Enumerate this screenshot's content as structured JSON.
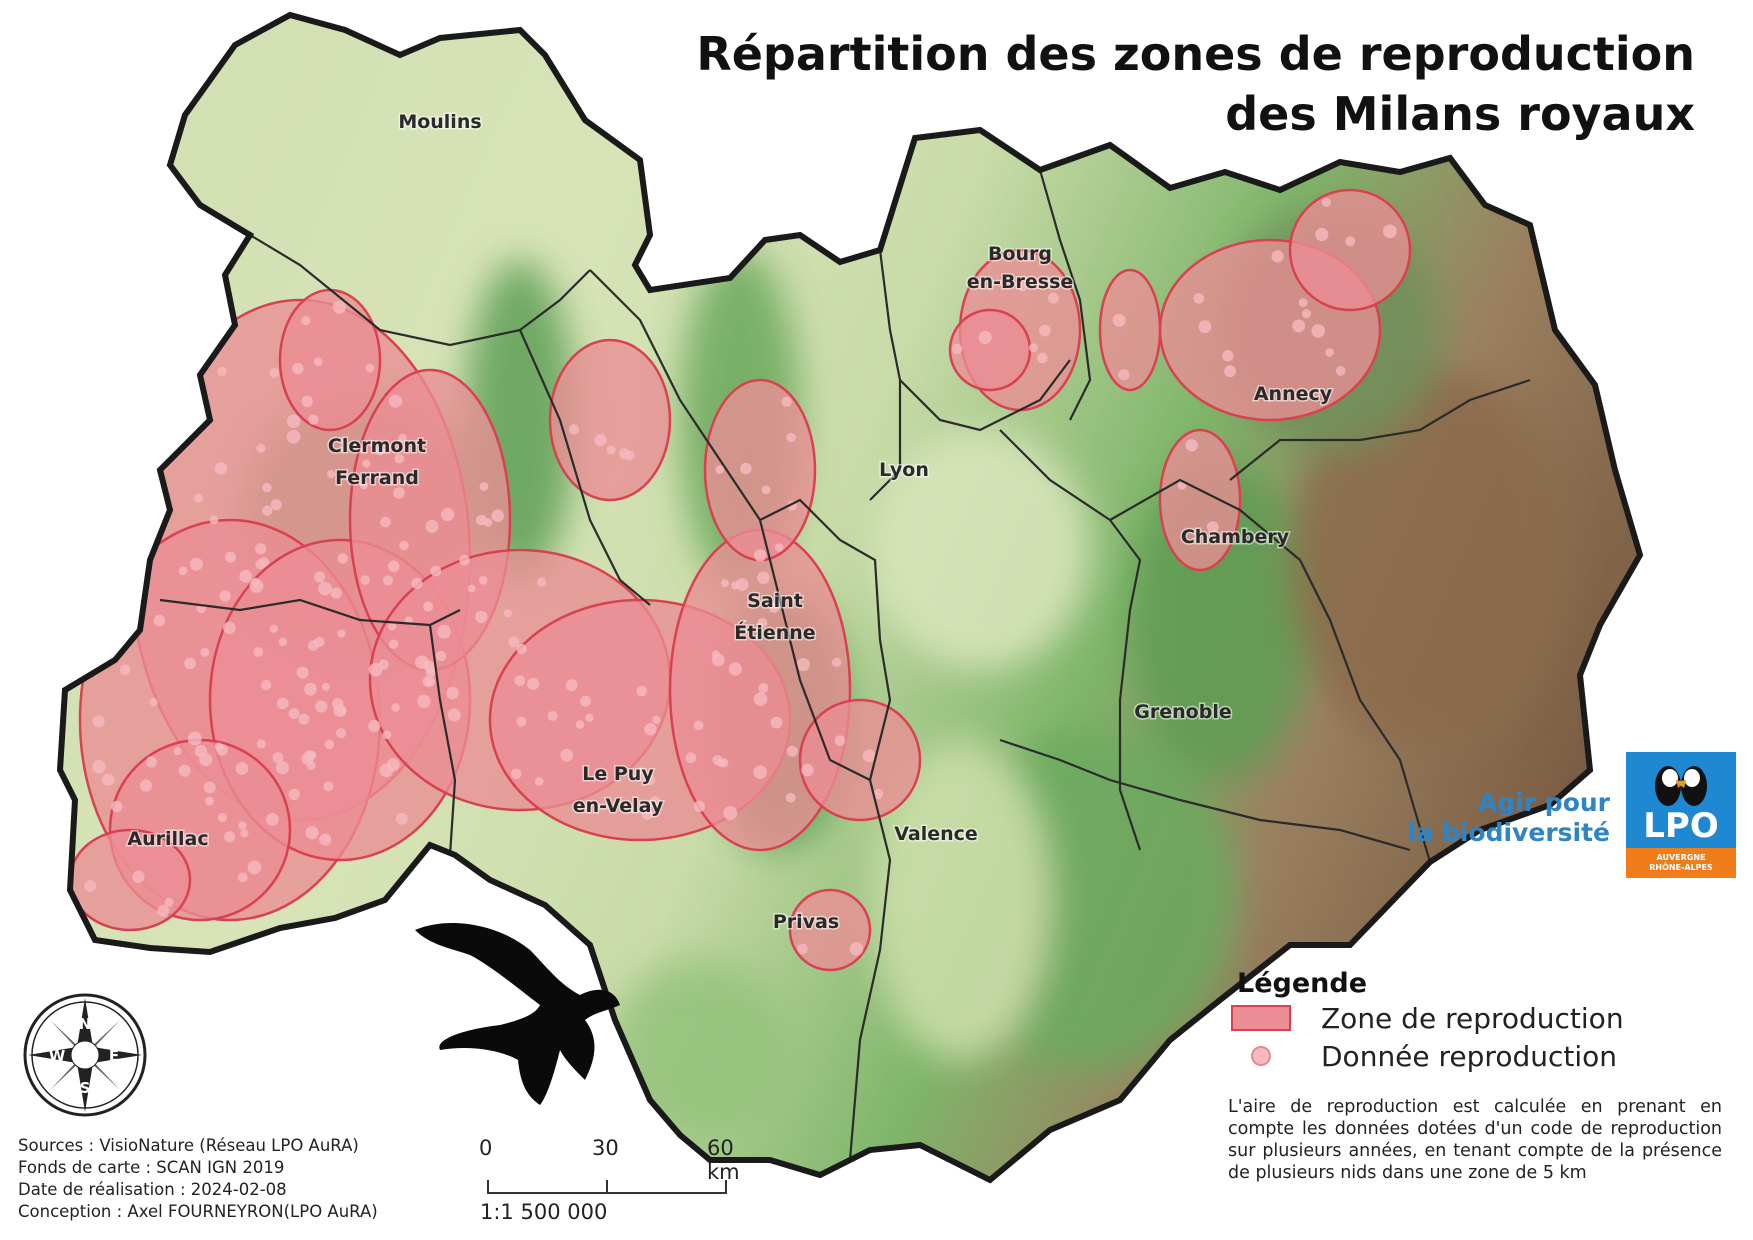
{
  "title": {
    "line1": "Répartition des zones de reproduction",
    "line2": "des Milans royaux"
  },
  "cities": [
    {
      "id": "moulins",
      "lines": [
        "Moulins"
      ]
    },
    {
      "id": "clermont",
      "lines": [
        "Clermont",
        "Ferrand"
      ]
    },
    {
      "id": "aurillac",
      "lines": [
        "Aurillac"
      ]
    },
    {
      "id": "lepuy",
      "lines": [
        "Le Puy",
        "en-Velay"
      ]
    },
    {
      "id": "saintetienne",
      "lines": [
        "Saint",
        "Étienne"
      ]
    },
    {
      "id": "lyon",
      "lines": [
        "Lyon"
      ]
    },
    {
      "id": "bourg",
      "lines": [
        "Bourg",
        "en-Bresse"
      ]
    },
    {
      "id": "annecy",
      "lines": [
        "Annecy"
      ]
    },
    {
      "id": "chambery",
      "lines": [
        "Chambery"
      ]
    },
    {
      "id": "grenoble",
      "lines": [
        "Grenoble"
      ]
    },
    {
      "id": "valence",
      "lines": [
        "Valence"
      ]
    },
    {
      "id": "privas",
      "lines": [
        "Privas"
      ]
    }
  ],
  "legend": {
    "title": "Légende",
    "zone_label": "Zone de reproduction",
    "point_label": "Donnée reproduction",
    "zone_fill": "#eb8d95",
    "zone_stroke": "#d94050",
    "point_fill": "#f6b9bf",
    "note": "L'aire de reproduction est calculée en prenant en compte les données dotées d'un code de reproduction sur plusieurs années, en tenant compte de la présence de plusieurs nids dans une zone de 5 km"
  },
  "sources": {
    "line1": "Sources :  VisioNature (Réseau LPO AuRA)",
    "line2": "Fonds de carte : SCAN IGN 2019",
    "line3": "Date de réalisation : 2024-02-08",
    "line4": "Conception :  Axel FOURNEYRON(LPO AuRA)"
  },
  "scale": {
    "label_0": "0",
    "label_30": "30",
    "label_60": "60 km",
    "ratio": "1:1 500 000"
  },
  "compass": {
    "n": "N",
    "s": "S",
    "e": "E",
    "w": "W"
  },
  "brand": {
    "line1": "Agir pour",
    "line2": "la biodiversité",
    "logo_text": "LPO",
    "logo_sub1": "AUVERGNE",
    "logo_sub2": "RHÔNE-ALPES",
    "blue": "#1e88d2",
    "orange": "#ef7d1a"
  },
  "colors": {
    "terrain_plain": "#d6e3b4",
    "terrain_hill": "#6fae62",
    "terrain_mountain": "#9b7a58",
    "border": "#1a1a1a"
  }
}
